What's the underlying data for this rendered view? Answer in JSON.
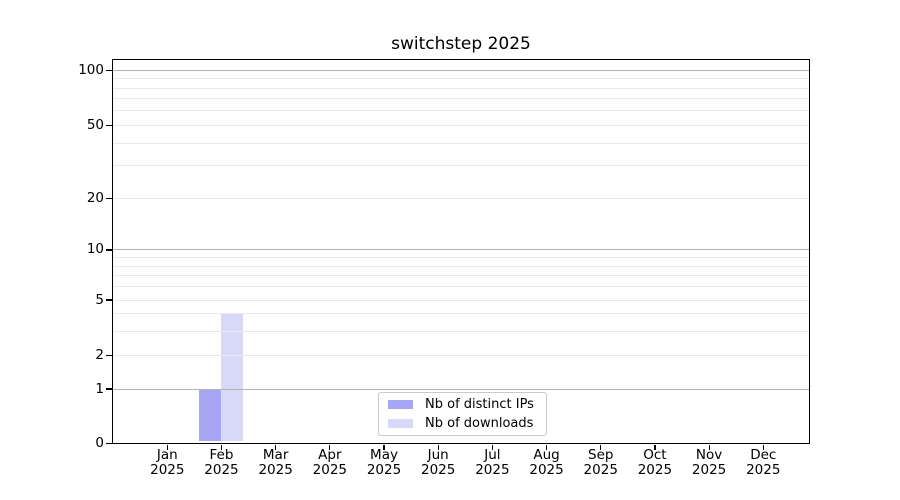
{
  "chart_data": {
    "type": "bar",
    "title": "switchstep 2025",
    "x_ticks": [
      {
        "month": "Jan",
        "year": "2025"
      },
      {
        "month": "Feb",
        "year": "2025"
      },
      {
        "month": "Mar",
        "year": "2025"
      },
      {
        "month": "Apr",
        "year": "2025"
      },
      {
        "month": "May",
        "year": "2025"
      },
      {
        "month": "Jun",
        "year": "2025"
      },
      {
        "month": "Jul",
        "year": "2025"
      },
      {
        "month": "Aug",
        "year": "2025"
      },
      {
        "month": "Sep",
        "year": "2025"
      },
      {
        "month": "Oct",
        "year": "2025"
      },
      {
        "month": "Nov",
        "year": "2025"
      },
      {
        "month": "Dec",
        "year": "2025"
      }
    ],
    "series": [
      {
        "name": "Nb of distinct IPs",
        "color": "#a6a6f4",
        "values": [
          0,
          1,
          0,
          0,
          0,
          0,
          0,
          0,
          0,
          0,
          0,
          0
        ]
      },
      {
        "name": "Nb of downloads",
        "color": "#d8d8f8",
        "values": [
          0,
          4,
          0,
          0,
          0,
          0,
          0,
          0,
          0,
          0,
          0,
          0
        ]
      }
    ],
    "y_axis": {
      "tick_values": [
        0,
        1,
        2,
        5,
        10,
        20,
        50,
        100
      ],
      "tick_labels": [
        "0",
        "1",
        "2",
        "5",
        "10",
        "20",
        "50",
        "100"
      ],
      "major_gridlines": [
        1,
        10,
        100
      ],
      "light_gridlines": [
        2,
        3,
        4,
        5,
        6,
        7,
        8,
        9,
        20,
        30,
        40,
        50,
        60,
        70,
        80,
        90
      ],
      "scale_anchors": [
        [
          0,
          0
        ],
        [
          1,
          0.1417
        ],
        [
          2,
          0.2284
        ],
        [
          5,
          0.3732
        ],
        [
          10,
          0.5033
        ],
        [
          20,
          0.6377
        ],
        [
          50,
          0.8276
        ],
        [
          100,
          0.9706
        ]
      ]
    },
    "legend": {
      "position": "lower center"
    },
    "grid": true,
    "colors": {
      "major_grid": "#b3b3b3",
      "light_grid": "#e9e9e9",
      "spine": "#000000",
      "text": "#000000",
      "legend_border": "#c9c9c9",
      "background": "#ffffff"
    }
  }
}
